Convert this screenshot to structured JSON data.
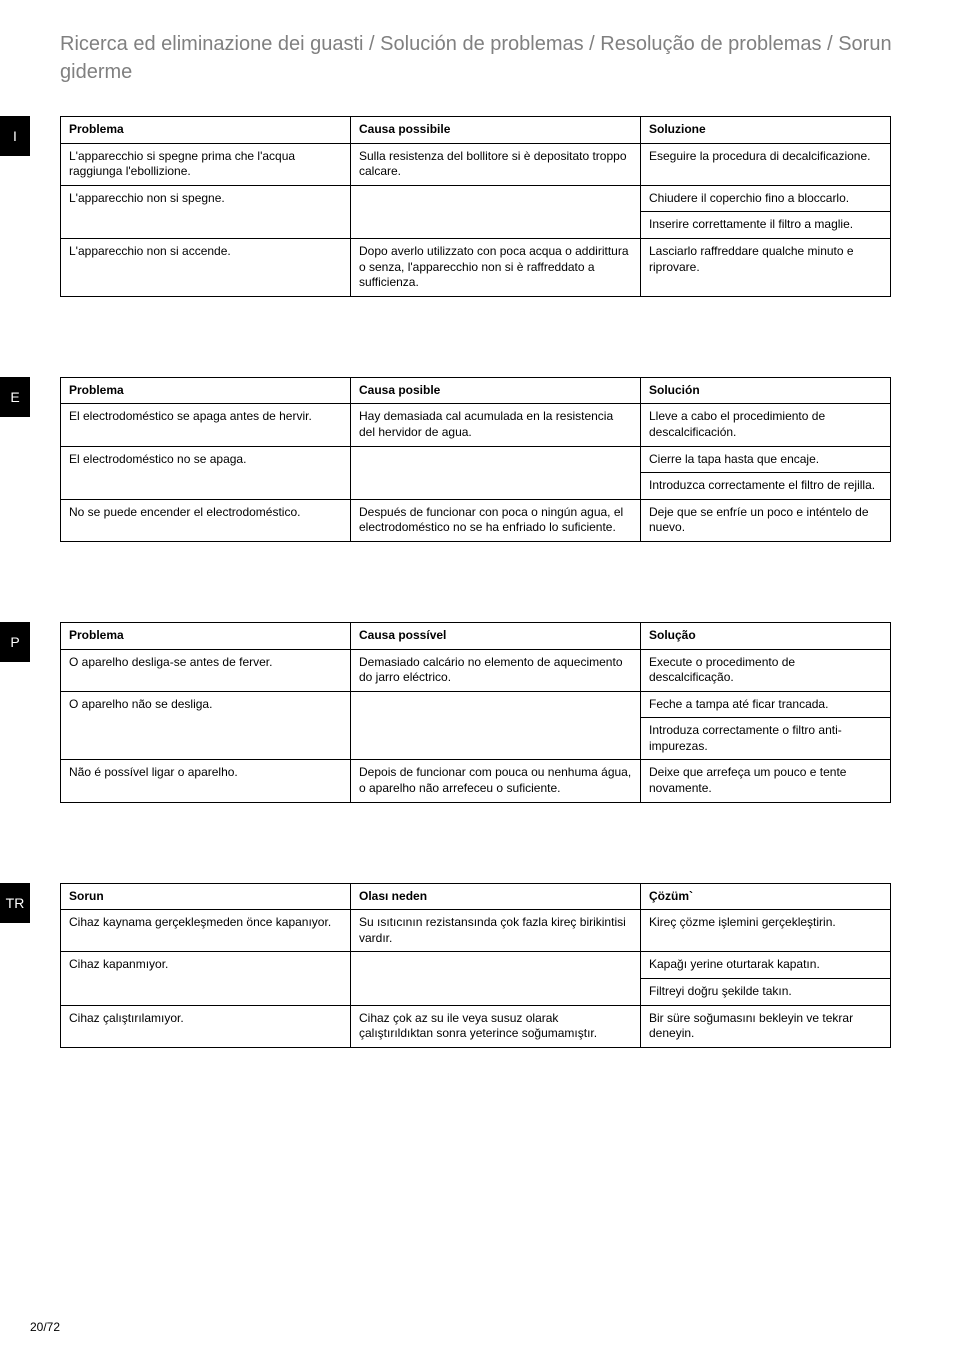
{
  "title": "Ricerca ed eliminazione dei guasti  /  Solución de problemas  / Resolução de problemas  / Sorun giderme",
  "page_number": "20/72",
  "sections": [
    {
      "lang": "I",
      "headers": [
        "Problema",
        "Causa possibile",
        "Soluzione"
      ],
      "rows": [
        [
          "L'apparecchio si spegne prima che l'acqua raggiunga l'ebollizione.",
          "Sulla resistenza del bollitore si è depositato troppo calcare.",
          "Eseguire la procedura di decalcificazione."
        ],
        [
          "L'apparecchio non si spegne.",
          "",
          "Chiudere il coperchio fino a bloccarlo."
        ],
        [
          "",
          "",
          "Inserire correttamente il filtro a maglie."
        ],
        [
          "L'apparecchio non si accende.",
          "Dopo averlo utilizzato con poca acqua o addirittura o senza, l'apparecchio non si è raffreddato a sufficienza.",
          "Lasciarlo raffreddare qualche minuto e riprovare."
        ]
      ],
      "spans": {
        "1": {
          "0": 2,
          "1": 2
        }
      }
    },
    {
      "lang": "E",
      "headers": [
        "Problema",
        "Causa posible",
        "Solución"
      ],
      "rows": [
        [
          "El electrodoméstico se apaga antes de hervir.",
          "Hay demasiada cal acumulada en la resistencia del hervidor de agua.",
          "Lleve a cabo el procedimiento de descalcificación."
        ],
        [
          "El electrodoméstico no se apaga.",
          "",
          "Cierre la tapa hasta que encaje."
        ],
        [
          "",
          "",
          "Introduzca correctamente el filtro de rejilla."
        ],
        [
          "No se puede encender el electrodoméstico.",
          "Después de funcionar con poca o ningún agua, el electrodoméstico no se ha enfriado lo suficiente.",
          "Deje que se enfríe un poco e inténtelo de nuevo."
        ]
      ],
      "spans": {
        "1": {
          "0": 2,
          "1": 2
        }
      }
    },
    {
      "lang": "P",
      "headers": [
        "Problema",
        "Causa possível",
        "Solução"
      ],
      "rows": [
        [
          "O aparelho desliga-se antes de ferver.",
          "Demasiado calcário no elemento de aquecimento do jarro eléctrico.",
          "Execute o procedimento de descalcificação."
        ],
        [
          "O aparelho não se desliga.",
          "",
          "Feche a tampa até ficar trancada."
        ],
        [
          "",
          "",
          "Introduza correctamente o filtro anti-impurezas."
        ],
        [
          "Não é possível ligar o aparelho.",
          "Depois de funcionar com pouca ou nenhuma água, o aparelho não arrefeceu o suficiente.",
          "Deixe que arrefeça um pouco e tente novamente."
        ]
      ],
      "spans": {
        "1": {
          "0": 2,
          "1": 2
        }
      }
    },
    {
      "lang": "TR",
      "headers": [
        "Sorun",
        "Olası neden",
        "Çözüm`"
      ],
      "rows": [
        [
          "Cihaz kaynama gerçekleşmeden önce kapanıyor.",
          "Su ısıtıcının rezistansında çok fazla kireç birikintisi vardır.",
          "Kireç çözme işlemini gerçekleştirin."
        ],
        [
          "Cihaz kapanmıyor.",
          "",
          "Kapağı yerine oturtarak kapatın."
        ],
        [
          "",
          "",
          "Filtreyi doğru şekilde takın."
        ],
        [
          "Cihaz çalıştırılamıyor.",
          "Cihaz çok az su ile veya susuz olarak çalıştırıldıktan sonra yeterince soğumamıştır.",
          "Bir süre soğumasını bekleyin ve tekrar deneyin."
        ]
      ],
      "spans": {
        "1": {
          "0": 2,
          "1": 2
        }
      }
    }
  ]
}
